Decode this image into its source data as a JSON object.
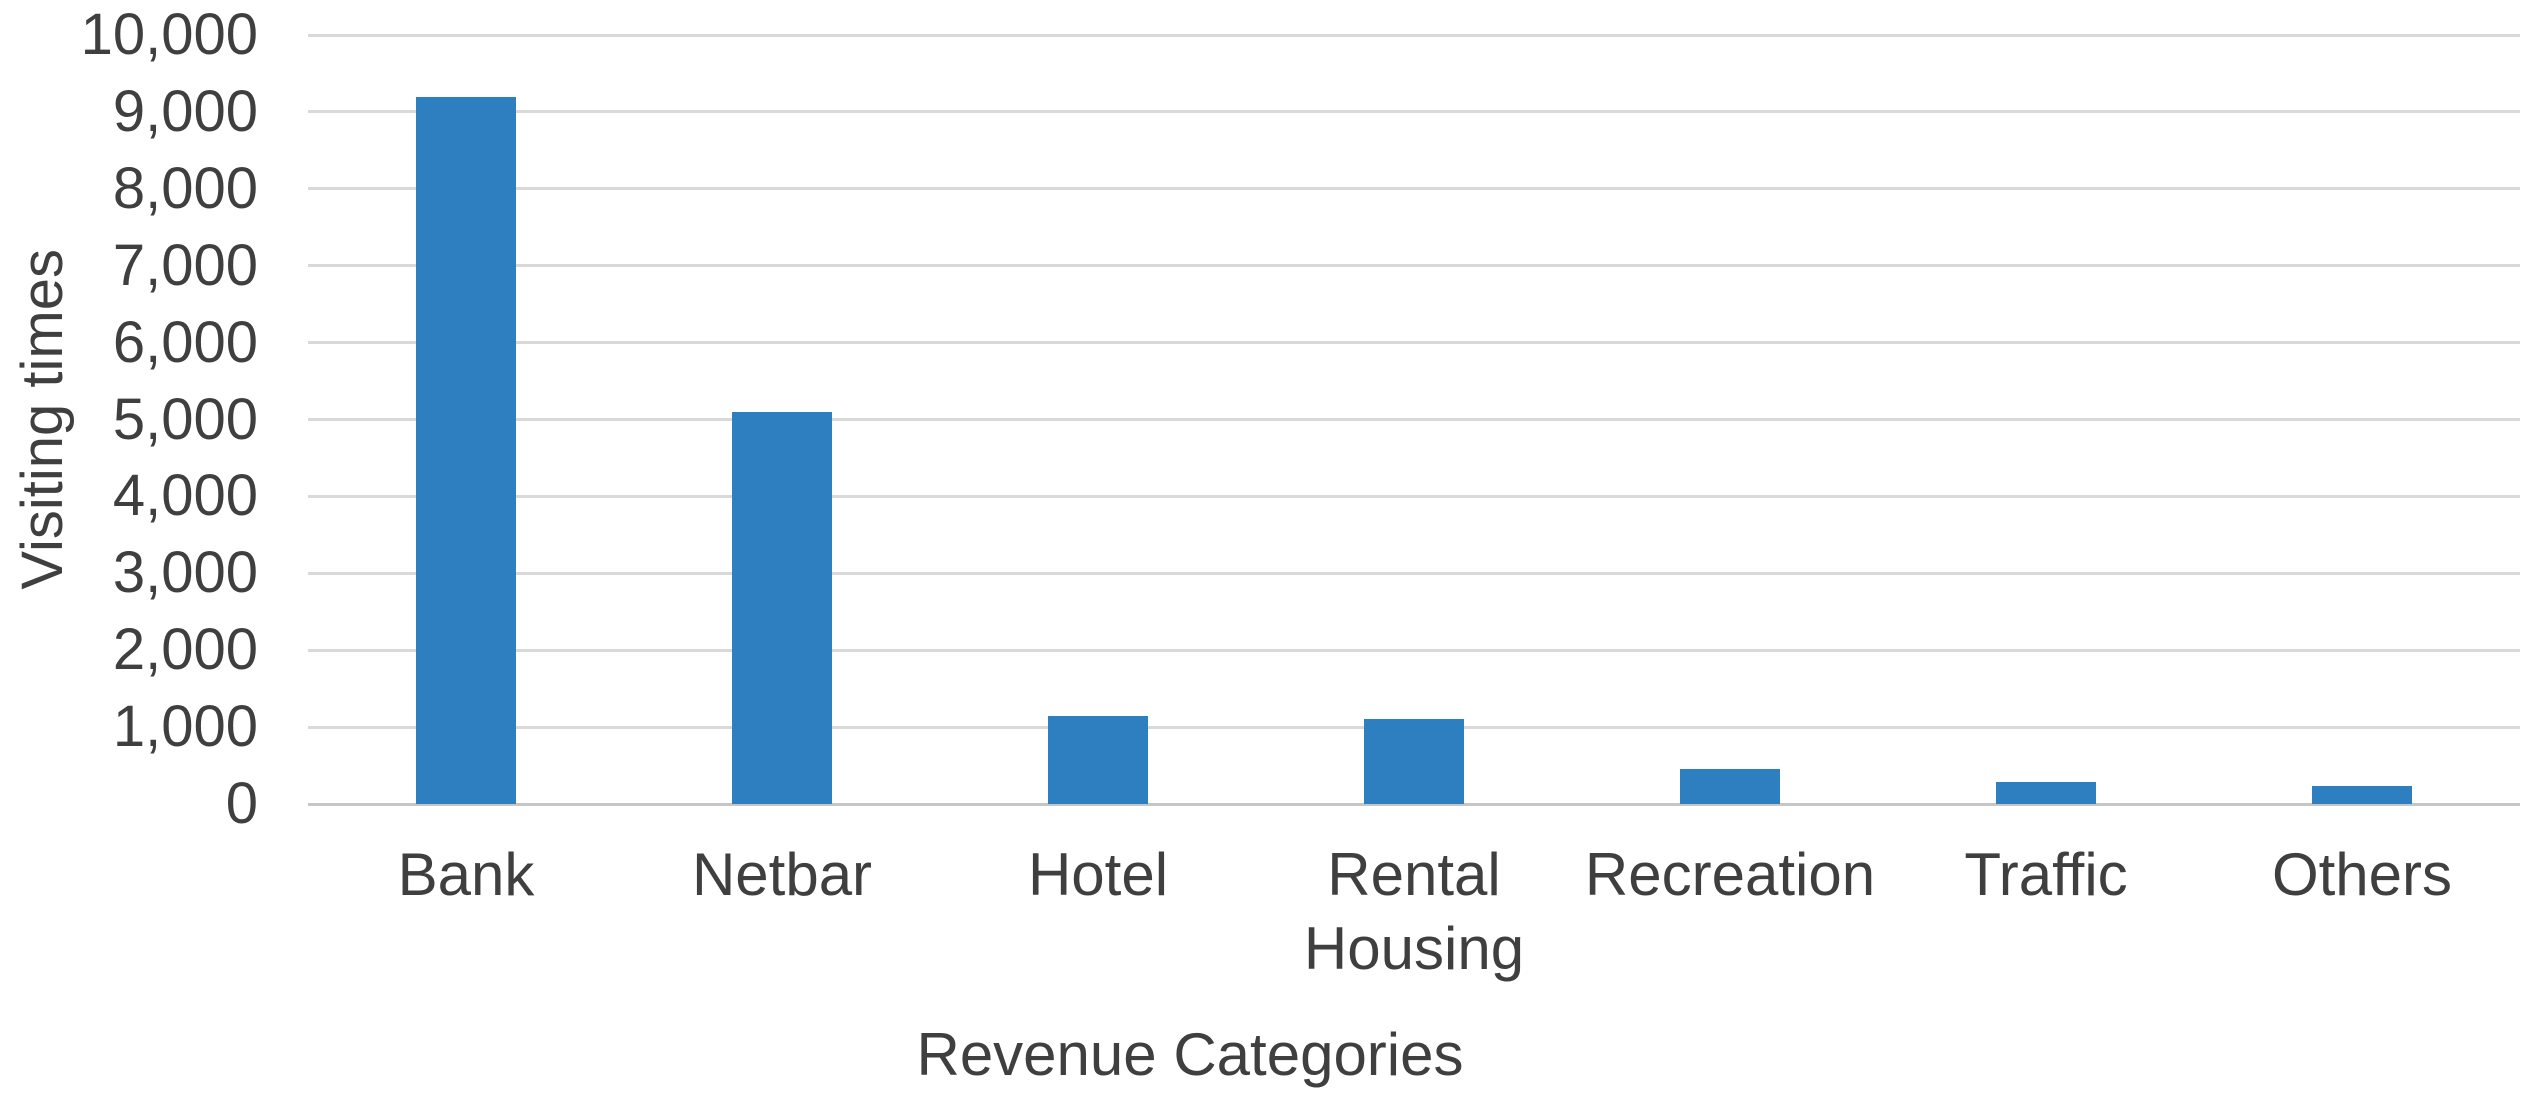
{
  "chart_data": {
    "type": "bar",
    "title": "",
    "categories": [
      "Bank",
      "Netbar",
      "Hotel",
      "Rental Housing",
      "Recreation",
      "Traffic",
      "Others"
    ],
    "values": [
      9200,
      5100,
      1150,
      1100,
      450,
      280,
      230
    ],
    "xlabel": "Revenue Categories",
    "ylabel": "Visiting times",
    "ylim": [
      0,
      10000
    ],
    "ytick_step": 1000,
    "ytick_labels": [
      "0",
      "1,000",
      "2,000",
      "3,000",
      "4,000",
      "5,000",
      "6,000",
      "7,000",
      "8,000",
      "9,000",
      "10,000"
    ],
    "grid": true,
    "legend": false,
    "bar_color": "#2e7fc0",
    "gridline_color": "#d9d9d9",
    "zero_line_color": "#c6c6c6",
    "text_color": "#3f3f3f",
    "background_color": "#ffffff"
  }
}
